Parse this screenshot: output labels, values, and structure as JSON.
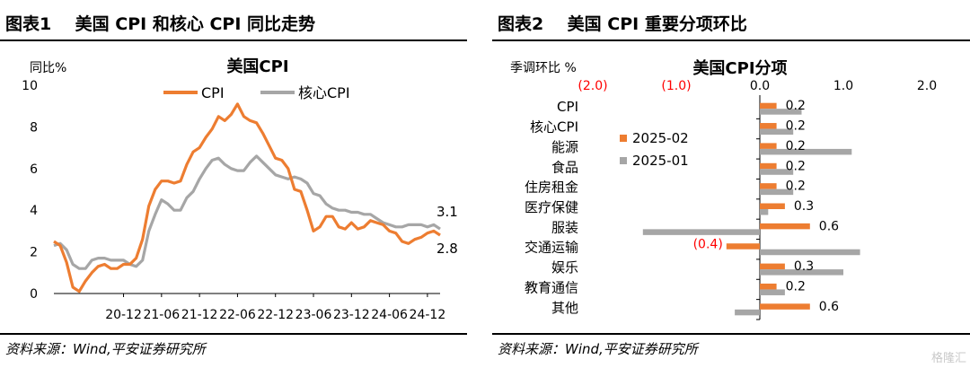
{
  "left": {
    "header": "图表1    美国 CPI 和核心 CPI 同比走势",
    "source": "资料来源：Wind,平安证券研究所"
  },
  "right": {
    "header": "图表2    美国 CPI 重要分项环比",
    "source": "资料来源：Wind,平安证券研究所"
  },
  "watermark": "格隆汇",
  "colors": {
    "cpi": "#ED7D31",
    "core": "#A6A6A6",
    "negative": "#FF0000"
  },
  "chart_data": [
    {
      "type": "line",
      "title": "美国CPI",
      "ylabel": "同比%",
      "xlabel": "",
      "ylim": [
        0,
        10
      ],
      "yticks": [
        "0",
        "2",
        "4",
        "6",
        "8",
        "10"
      ],
      "xtick_labels": [
        "20-12",
        "21-06",
        "21-12",
        "22-06",
        "22-12",
        "23-06",
        "23-12",
        "24-06",
        "24-12"
      ],
      "grid": false,
      "legend": "top-center",
      "x": [
        "2020-01",
        "2020-02",
        "2020-03",
        "2020-04",
        "2020-05",
        "2020-06",
        "2020-07",
        "2020-08",
        "2020-09",
        "2020-10",
        "2020-11",
        "2020-12",
        "2021-01",
        "2021-02",
        "2021-03",
        "2021-04",
        "2021-05",
        "2021-06",
        "2021-07",
        "2021-08",
        "2021-09",
        "2021-10",
        "2021-11",
        "2021-12",
        "2022-01",
        "2022-02",
        "2022-03",
        "2022-04",
        "2022-05",
        "2022-06",
        "2022-07",
        "2022-08",
        "2022-09",
        "2022-10",
        "2022-11",
        "2022-12",
        "2023-01",
        "2023-02",
        "2023-03",
        "2023-04",
        "2023-05",
        "2023-06",
        "2023-07",
        "2023-08",
        "2023-09",
        "2023-10",
        "2023-11",
        "2023-12",
        "2024-01",
        "2024-02",
        "2024-03",
        "2024-04",
        "2024-05",
        "2024-06",
        "2024-07",
        "2024-08",
        "2024-09",
        "2024-10",
        "2024-11",
        "2024-12",
        "2025-01",
        "2025-02"
      ],
      "series": [
        {
          "name": "CPI",
          "values": [
            2.5,
            2.3,
            1.5,
            0.3,
            0.1,
            0.6,
            1.0,
            1.3,
            1.4,
            1.2,
            1.2,
            1.4,
            1.4,
            1.7,
            2.6,
            4.2,
            5.0,
            5.4,
            5.4,
            5.3,
            5.4,
            6.2,
            6.8,
            7.0,
            7.5,
            7.9,
            8.5,
            8.3,
            8.6,
            9.1,
            8.5,
            8.3,
            8.2,
            7.7,
            7.1,
            6.5,
            6.4,
            6.0,
            5.0,
            4.9,
            4.0,
            3.0,
            3.2,
            3.7,
            3.7,
            3.2,
            3.1,
            3.4,
            3.1,
            3.2,
            3.5,
            3.4,
            3.3,
            3.0,
            2.9,
            2.5,
            2.4,
            2.6,
            2.7,
            2.9,
            3.0,
            2.8
          ]
        },
        {
          "name": "核心CPI",
          "values": [
            2.3,
            2.4,
            2.1,
            1.4,
            1.2,
            1.2,
            1.6,
            1.7,
            1.7,
            1.6,
            1.6,
            1.6,
            1.4,
            1.3,
            1.6,
            3.0,
            3.8,
            4.5,
            4.3,
            4.0,
            4.0,
            4.6,
            4.9,
            5.5,
            6.0,
            6.4,
            6.5,
            6.2,
            6.0,
            5.9,
            5.9,
            6.3,
            6.6,
            6.3,
            6.0,
            5.7,
            5.6,
            5.5,
            5.6,
            5.5,
            5.3,
            4.8,
            4.7,
            4.3,
            4.1,
            4.0,
            4.0,
            3.9,
            3.9,
            3.8,
            3.8,
            3.6,
            3.4,
            3.3,
            3.2,
            3.2,
            3.3,
            3.3,
            3.3,
            3.2,
            3.3,
            3.1
          ]
        }
      ],
      "end_labels": [
        "3.1",
        "2.8"
      ]
    },
    {
      "type": "bar",
      "orientation": "horizontal",
      "title": "美国CPI分项",
      "ylabel": "季调环比 %",
      "xlim": [
        -2.0,
        2.0
      ],
      "xtick_labels": [
        "(2.0)",
        "(1.0)",
        "0.0",
        "1.0",
        "2.0"
      ],
      "xticks": [
        -2.0,
        -1.0,
        0.0,
        1.0,
        2.0
      ],
      "legend": "left-inside",
      "categories": [
        "CPI",
        "核心CPI",
        "能源",
        "食品",
        "住房租金",
        "医疗保健",
        "服装",
        "交通运输",
        "娱乐",
        "教育通信",
        "其他"
      ],
      "series": [
        {
          "name": "2025-02",
          "values": [
            0.2,
            0.2,
            0.2,
            0.2,
            0.2,
            0.3,
            0.6,
            -0.4,
            0.3,
            0.2,
            0.6
          ]
        },
        {
          "name": "2025-01",
          "values": [
            0.5,
            0.4,
            1.1,
            0.4,
            0.4,
            0.1,
            -1.4,
            1.2,
            1.0,
            0.3,
            -0.3
          ]
        }
      ],
      "data_labels": [
        "0.2",
        "0.2",
        "0.2",
        "0.2",
        "0.2",
        "0.3",
        "0.6",
        "(0.4)",
        "0.3",
        "0.2",
        "0.6"
      ]
    }
  ]
}
